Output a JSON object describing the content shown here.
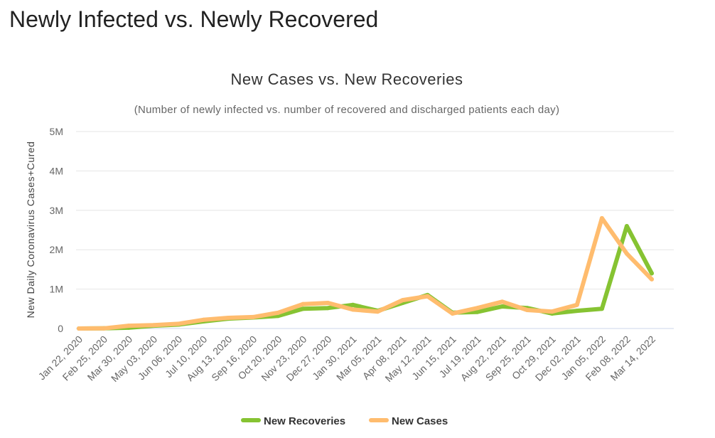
{
  "page": {
    "heading": "Newly Infected vs. Newly Recovered"
  },
  "chart_data": {
    "type": "line",
    "title": "New Cases vs. New Recoveries",
    "subtitle": "(Number of newly infected vs. number of recovered and discharged patients each day)",
    "xlabel": "",
    "ylabel": "New Daily Coronavirus Cases+Cured",
    "x_categories": [
      "Jan 22, 2020",
      "Feb 25, 2020",
      "Mar 30, 2020",
      "May 03, 2020",
      "Jun 06, 2020",
      "Jul 10, 2020",
      "Aug 13, 2020",
      "Sep 16, 2020",
      "Oct 20, 2020",
      "Nov 23, 2020",
      "Dec 27, 2020",
      "Jan 30, 2021",
      "Mar 05, 2021",
      "Apr 08, 2021",
      "May 12, 2021",
      "Jun 15, 2021",
      "Jul 19, 2021",
      "Aug 22, 2021",
      "Sep 25, 2021",
      "Oct 29, 2021",
      "Dec 02, 2021",
      "Jan 05, 2022",
      "Feb 08, 2022",
      "Mar 14, 2022"
    ],
    "y_ticks": [
      "0",
      "1M",
      "2M",
      "3M",
      "4M",
      "5M"
    ],
    "ylim": [
      0,
      5000000
    ],
    "grid": true,
    "legend_position": "bottom-center",
    "series": [
      {
        "name": "New Recoveries",
        "color": "#86c332",
        "values": [
          0,
          5000,
          20000,
          70000,
          100000,
          180000,
          250000,
          280000,
          320000,
          500000,
          520000,
          600000,
          450000,
          650000,
          850000,
          400000,
          420000,
          560000,
          520000,
          380000,
          450000,
          500000,
          2600000,
          1400000
        ]
      },
      {
        "name": "New Cases",
        "color": "#ffbc6e",
        "values": [
          0,
          3000,
          70000,
          85000,
          120000,
          220000,
          270000,
          290000,
          400000,
          620000,
          650000,
          480000,
          430000,
          720000,
          820000,
          380000,
          520000,
          680000,
          470000,
          430000,
          600000,
          2800000,
          1900000,
          1250000
        ]
      }
    ]
  }
}
